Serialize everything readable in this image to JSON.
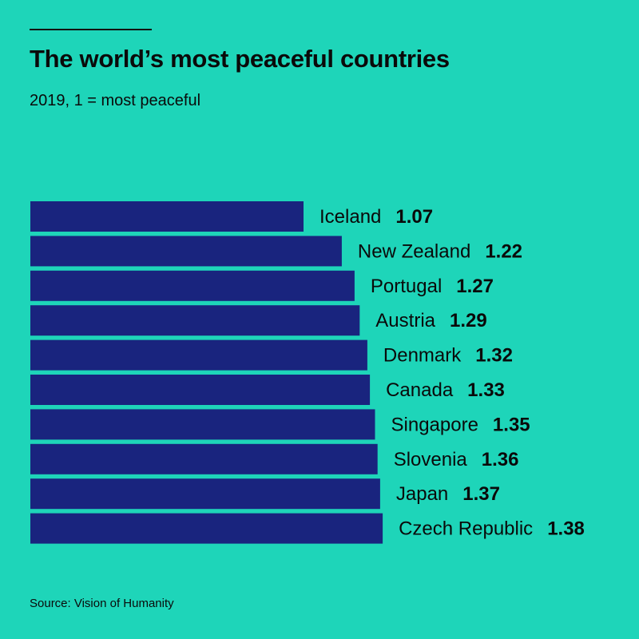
{
  "header": {
    "title": "The world’s most peaceful countries",
    "subtitle": "2019, 1 = most peaceful"
  },
  "footer": {
    "source": "Source: Vision of Humanity"
  },
  "colors": {
    "background": "#1ed5b9",
    "bar": "#19247e",
    "text": "#0a0a0a"
  },
  "chart_data": {
    "type": "bar",
    "orientation": "horizontal",
    "title": "The world’s most peaceful countries",
    "subtitle": "2019, 1 = most peaceful",
    "xlabel": "",
    "ylabel": "",
    "grid": false,
    "categories": [
      "Iceland",
      "New Zealand",
      "Portugal",
      "Austria",
      "Denmark",
      "Canada",
      "Singapore",
      "Slovenia",
      "Japan",
      "Czech Republic"
    ],
    "values": [
      1.07,
      1.22,
      1.27,
      1.29,
      1.32,
      1.33,
      1.35,
      1.36,
      1.37,
      1.38
    ],
    "value_labels": [
      "1.07",
      "1.22",
      "1.27",
      "1.29",
      "1.32",
      "1.33",
      "1.35",
      "1.36",
      "1.37",
      "1.38"
    ]
  }
}
